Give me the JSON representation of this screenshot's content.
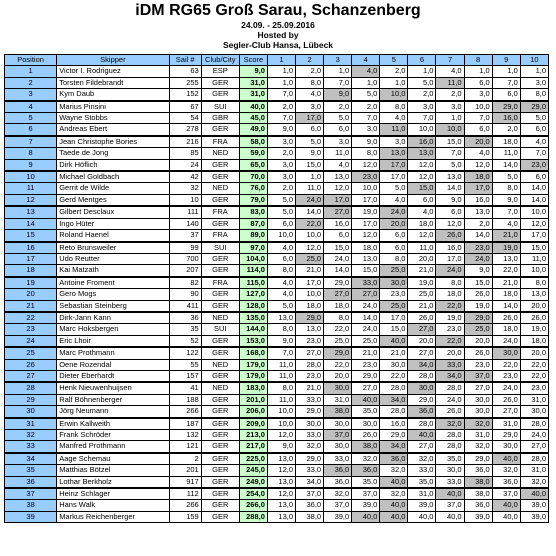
{
  "header": {
    "title": "iDM RG65 Groß Sarau, Schanzenberg",
    "dates": "24.09. - 25.09.2016",
    "hosted": "Hosted by",
    "club": "Segler-Club Hansa, Lübeck"
  },
  "columns": [
    "Position",
    "Skipper",
    "Sail #",
    "Club/City",
    "Score",
    "1",
    "2",
    "3",
    "4",
    "5",
    "6",
    "7",
    "8",
    "9",
    "10"
  ],
  "rows": [
    {
      "pos": "1",
      "skipper": "Victor I. Rodriguez",
      "sail": "63",
      "club": "ESP",
      "score": "9,0",
      "races": [
        "1,0",
        "2,0",
        "1,0",
        "4,0",
        "2,0",
        "1,0",
        "4,0",
        "1,0",
        "1,0",
        "1,0"
      ],
      "drop": [
        3
      ]
    },
    {
      "pos": "2",
      "skipper": "Torsten Fildebrandt",
      "sail": "255",
      "club": "GER",
      "score": "31,0",
      "races": [
        "1,0",
        "8,0",
        "7,0",
        "1,0",
        "1,0",
        "5,0",
        "11,0",
        "6,0",
        "7,0",
        "3,0"
      ],
      "drop": [
        6
      ]
    },
    {
      "pos": "3",
      "skipper": "Kym Daub",
      "sail": "152",
      "club": "GER",
      "score": "31,0",
      "races": [
        "7,0",
        "4,0",
        "9,0",
        "5,0",
        "10,0",
        "2,0",
        "2,0",
        "3,0",
        "6,0",
        "8,0"
      ],
      "drop": [
        2,
        4
      ]
    },
    {
      "pos": "4",
      "skipper": "Marius Pinsini",
      "sail": "67",
      "club": "SUI",
      "score": "40,0",
      "races": [
        "2,0",
        "3,0",
        "2,0",
        "2,0",
        "8,0",
        "3,0",
        "3,0",
        "10,0",
        "29,0",
        "29,0"
      ],
      "drop": [
        8,
        9
      ]
    },
    {
      "pos": "5",
      "skipper": "Wayne Stobbs",
      "sail": "54",
      "club": "GBR",
      "score": "45,0",
      "races": [
        "7,0",
        "17,0",
        "5,0",
        "7,0",
        "4,0",
        "7,0",
        "1,0",
        "7,0",
        "16,0",
        "5,0"
      ],
      "drop": [
        1,
        8
      ]
    },
    {
      "pos": "6",
      "skipper": "Andreas Ebert",
      "sail": "278",
      "club": "GER",
      "score": "49,0",
      "races": [
        "9,0",
        "6,0",
        "6,0",
        "3,0",
        "11,0",
        "10,0",
        "10,0",
        "6,0",
        "2,0",
        "6,0"
      ],
      "drop": [
        4,
        6
      ]
    },
    {
      "pos": "7",
      "skipper": "Jean Christophe Bories",
      "sail": "216",
      "club": "FRA",
      "score": "58,0",
      "races": [
        "3,0",
        "5,0",
        "3,0",
        "9,0",
        "3,0",
        "16,0",
        "15,0",
        "20,0",
        "18,0",
        "4,0"
      ],
      "drop": [
        5,
        7
      ]
    },
    {
      "pos": "8",
      "skipper": "Taede de Jong",
      "sail": "85",
      "club": "NED",
      "score": "59,0",
      "races": [
        "2,0",
        "9,0",
        "11,0",
        "8,0",
        "13,0",
        "13,0",
        "7,0",
        "4,0",
        "11,0",
        "7,0"
      ],
      "drop": [
        4,
        5
      ]
    },
    {
      "pos": "9",
      "skipper": "Dirk Höflich",
      "sail": "24",
      "club": "GER",
      "score": "65,0",
      "races": [
        "3,0",
        "15,0",
        "4,0",
        "12,0",
        "17,0",
        "12,0",
        "5,0",
        "12,0",
        "14,0",
        "23,0"
      ],
      "drop": [
        4,
        9
      ]
    },
    {
      "pos": "10",
      "skipper": "Michael Goldbach",
      "sail": "42",
      "club": "GER",
      "score": "70,0",
      "races": [
        "3,0",
        "1,0",
        "13,0",
        "23,0",
        "17,0",
        "12,0",
        "13,0",
        "18,0",
        "5,0",
        "6,0"
      ],
      "drop": [
        3,
        7
      ]
    },
    {
      "pos": "11",
      "skipper": "Gerrit de Wilde",
      "sail": "32",
      "club": "NED",
      "score": "76,0",
      "races": [
        "2,0",
        "11,0",
        "12,0",
        "10,0",
        "5,0",
        "15,0",
        "14,0",
        "17,0",
        "8,0",
        "14,0"
      ],
      "drop": [
        5,
        7
      ]
    },
    {
      "pos": "12",
      "skipper": "Gerd Mentges",
      "sail": "10",
      "club": "GER",
      "score": "79,0",
      "races": [
        "5,0",
        "24,0",
        "17,0",
        "17,0",
        "4,0",
        "6,0",
        "9,0",
        "16,0",
        "9,0",
        "14,0"
      ],
      "drop": [
        1,
        2
      ]
    },
    {
      "pos": "13",
      "skipper": "Gilbert Desclaux",
      "sail": "111",
      "club": "FRA",
      "score": "83,0",
      "races": [
        "5,0",
        "14,0",
        "27,0",
        "19,0",
        "24,0",
        "4,0",
        "6,0",
        "13,0",
        "7,0",
        "10,0"
      ],
      "drop": [
        2,
        4
      ]
    },
    {
      "pos": "14",
      "skipper": "Ingo Hüter",
      "sail": "140",
      "club": "GER",
      "score": "87,0",
      "races": [
        "6,0",
        "22,0",
        "16,0",
        "17,0",
        "20,0",
        "18,0",
        "12,0",
        "2,0",
        "4,0",
        "12,0"
      ],
      "drop": [
        1,
        4
      ]
    },
    {
      "pos": "15",
      "skipper": "Roland Haenel",
      "sail": "37",
      "club": "FRA",
      "score": "89,0",
      "races": [
        "10,0",
        "10,0",
        "6,0",
        "12,0",
        "6,0",
        "12,0",
        "26,0",
        "14,0",
        "21,0",
        "17,0"
      ],
      "drop": [
        6,
        8
      ]
    },
    {
      "pos": "16",
      "skipper": "Reto Brunsweiler",
      "sail": "99",
      "club": "SUI",
      "score": "97,0",
      "races": [
        "4,0",
        "12,0",
        "15,0",
        "18,0",
        "6,0",
        "11,0",
        "16,0",
        "23,0",
        "19,0",
        "15,0"
      ],
      "drop": [
        7,
        8
      ]
    },
    {
      "pos": "17",
      "skipper": "Udo Reutter",
      "sail": "700",
      "club": "GER",
      "score": "104,0",
      "races": [
        "6,0",
        "25,0",
        "24,0",
        "13,0",
        "8,0",
        "20,0",
        "17,0",
        "24,0",
        "13,0",
        "11,0"
      ],
      "drop": [
        1,
        7
      ]
    },
    {
      "pos": "18",
      "skipper": "Kai Matzath",
      "sail": "207",
      "club": "GER",
      "score": "114,0",
      "races": [
        "8,0",
        "21,0",
        "14,0",
        "15,0",
        "25,0",
        "21,0",
        "24,0",
        "9,0",
        "22,0",
        "10,0"
      ],
      "drop": [
        4,
        6
      ]
    },
    {
      "pos": "19",
      "skipper": "Antoine Froment",
      "sail": "82",
      "club": "FRA",
      "score": "115,0",
      "races": [
        "4,0",
        "17,0",
        "29,0",
        "33,0",
        "30,0",
        "19,0",
        "8,0",
        "15,0",
        "21,0",
        "8,0"
      ],
      "drop": [
        3,
        4
      ]
    },
    {
      "pos": "20",
      "skipper": "Gero Mogs",
      "sail": "90",
      "club": "GER",
      "score": "127,0",
      "races": [
        "4,0",
        "10,0",
        "27,0",
        "27,0",
        "23,0",
        "25,0",
        "18,0",
        "26,0",
        "18,0",
        "13,0"
      ],
      "drop": [
        2,
        3
      ]
    },
    {
      "pos": "21",
      "skipper": "Sebastian Steinberg",
      "sail": "411",
      "club": "GER",
      "score": "128,0",
      "races": [
        "5,0",
        "18,0",
        "18,0",
        "24,0",
        "25,0",
        "21,0",
        "22,0",
        "19,0",
        "14,0",
        "20,0"
      ],
      "drop": [
        4,
        6
      ]
    },
    {
      "pos": "22",
      "skipper": "Dirk-Jann Kann",
      "sail": "36",
      "club": "NED",
      "score": "135,0",
      "races": [
        "13,0",
        "29,0",
        "8,0",
        "14,0",
        "17,0",
        "26,0",
        "19,0",
        "29,0",
        "26,0",
        "26,0"
      ],
      "drop": [
        1,
        7
      ]
    },
    {
      "pos": "23",
      "skipper": "Marc Hoksbergen",
      "sail": "35",
      "club": "SUI",
      "score": "144,0",
      "races": [
        "8,0",
        "13,0",
        "22,0",
        "24,0",
        "15,0",
        "27,0",
        "23,0",
        "25,0",
        "18,0",
        "19,0"
      ],
      "drop": [
        5,
        7
      ]
    },
    {
      "pos": "24",
      "skipper": "Eric Lhoir",
      "sail": "52",
      "club": "GER",
      "score": "153,0",
      "races": [
        "9,0",
        "23,0",
        "25,0",
        "25,0",
        "40,0",
        "20,0",
        "22,0",
        "20,0",
        "24,0",
        "18,0"
      ],
      "drop": [
        4,
        6
      ]
    },
    {
      "pos": "25",
      "skipper": "Marc Prothmann",
      "sail": "122",
      "club": "GER",
      "score": "168,0",
      "races": [
        "7,0",
        "27,0",
        "29,0",
        "21,0",
        "21,0",
        "27,0",
        "20,0",
        "26,0",
        "30,0",
        "20,0"
      ],
      "drop": [
        2,
        8
      ]
    },
    {
      "pos": "26",
      "skipper": "Oene Rozendal",
      "sail": "55",
      "club": "NED",
      "score": "179,0",
      "races": [
        "11,0",
        "28,0",
        "22,0",
        "23,0",
        "30,0",
        "34,0",
        "33,0",
        "23,0",
        "22,0",
        "22,0"
      ],
      "drop": [
        5,
        6
      ]
    },
    {
      "pos": "27",
      "skipper": "Dieter Eberhardt",
      "sail": "157",
      "club": "GER",
      "score": "179,0",
      "races": [
        "11,0",
        "23,0",
        "20,0",
        "29,0",
        "22,0",
        "28,0",
        "34,0",
        "37,0",
        "23,0",
        "22,0"
      ],
      "drop": [
        6,
        7
      ]
    },
    {
      "pos": "28",
      "skipper": "Henk Nieuwenhuijsen",
      "sail": "41",
      "club": "NED",
      "score": "183,0",
      "races": [
        "8,0",
        "21,0",
        "30,0",
        "27,0",
        "28,0",
        "30,0",
        "28,0",
        "27,0",
        "24,0",
        "23,0"
      ],
      "drop": [
        2,
        5
      ]
    },
    {
      "pos": "29",
      "skipper": "Ralf Böhnenberger",
      "sail": "188",
      "club": "GER",
      "score": "201,0",
      "races": [
        "11,0",
        "33,0",
        "31,0",
        "40,0",
        "34,0",
        "29,0",
        "24,0",
        "30,0",
        "26,0",
        "31,0"
      ],
      "drop": [
        3,
        4
      ]
    },
    {
      "pos": "30",
      "skipper": "Jörg Neumann",
      "sail": "266",
      "club": "GER",
      "score": "206,0",
      "races": [
        "10,0",
        "29,0",
        "38,0",
        "35,0",
        "28,0",
        "36,0",
        "26,0",
        "30,0",
        "27,0",
        "30,0"
      ],
      "drop": [
        2,
        5
      ]
    },
    {
      "pos": "31",
      "skipper": "Erwin Kallweith",
      "sail": "187",
      "club": "GER",
      "score": "209,0",
      "races": [
        "10,0",
        "30,0",
        "30,0",
        "30,0",
        "16,0",
        "28,0",
        "32,0",
        "32,0",
        "31,0",
        "28,0"
      ],
      "drop": [
        6,
        7
      ]
    },
    {
      "pos": "32",
      "skipper": "Frank Schröder",
      "sail": "132",
      "club": "GER",
      "score": "213,0",
      "races": [
        "12,0",
        "33,0",
        "37,0",
        "26,0",
        "29,0",
        "40,0",
        "28,0",
        "31,0",
        "29,0",
        "24,0"
      ],
      "drop": [
        2,
        5
      ]
    },
    {
      "pos": "33",
      "skipper": "Manfred Prothmann",
      "sail": "121",
      "club": "GER",
      "score": "217,0",
      "races": [
        "9,0",
        "32,0",
        "30,0",
        "38,0",
        "34,0",
        "27,0",
        "28,0",
        "32,0",
        "30,0",
        "27,0"
      ],
      "drop": [
        3,
        4
      ]
    },
    {
      "pos": "34",
      "skipper": "Aage Schemau",
      "sail": "2",
      "club": "GER",
      "score": "225,0",
      "races": [
        "13,0",
        "29,0",
        "33,0",
        "32,0",
        "36,0",
        "32,0",
        "35,0",
        "29,0",
        "40,0",
        "28,0"
      ],
      "drop": [
        4,
        8
      ]
    },
    {
      "pos": "35",
      "skipper": "Matthias Bötzel",
      "sail": "201",
      "club": "GER",
      "score": "245,0",
      "races": [
        "12,0",
        "33,0",
        "36,0",
        "36,0",
        "32,0",
        "33,0",
        "30,0",
        "36,0",
        "32,0",
        "31,0"
      ],
      "drop": [
        2,
        3
      ]
    },
    {
      "pos": "36",
      "skipper": "Lothar Berkholz",
      "sail": "917",
      "club": "GER",
      "score": "249,0",
      "races": [
        "13,0",
        "34,0",
        "36,0",
        "35,0",
        "40,0",
        "35,0",
        "33,0",
        "38,0",
        "36,0",
        "32,0"
      ],
      "drop": [
        4,
        7
      ]
    },
    {
      "pos": "37",
      "skipper": "Heinz Schlager",
      "sail": "112",
      "club": "GER",
      "score": "254,0",
      "races": [
        "12,0",
        "37,0",
        "32,0",
        "37,0",
        "32,0",
        "31,0",
        "40,0",
        "38,0",
        "37,0",
        "40,0"
      ],
      "drop": [
        6,
        9
      ]
    },
    {
      "pos": "38",
      "skipper": "Hans Walk",
      "sail": "266",
      "club": "GER",
      "score": "266,0",
      "races": [
        "13,0",
        "36,0",
        "37,0",
        "39,0",
        "40,0",
        "39,0",
        "37,0",
        "36,0",
        "40,0",
        "39,0"
      ],
      "drop": [
        4,
        8
      ]
    },
    {
      "pos": "39",
      "skipper": "Markus Reichenberger",
      "sail": "159",
      "club": "GER",
      "score": "288,0",
      "races": [
        "13,0",
        "38,0",
        "39,0",
        "40,0",
        "40,0",
        "40,0",
        "40,0",
        "39,0",
        "40,0",
        "39,0"
      ],
      "drop": [
        3,
        4
      ]
    }
  ]
}
